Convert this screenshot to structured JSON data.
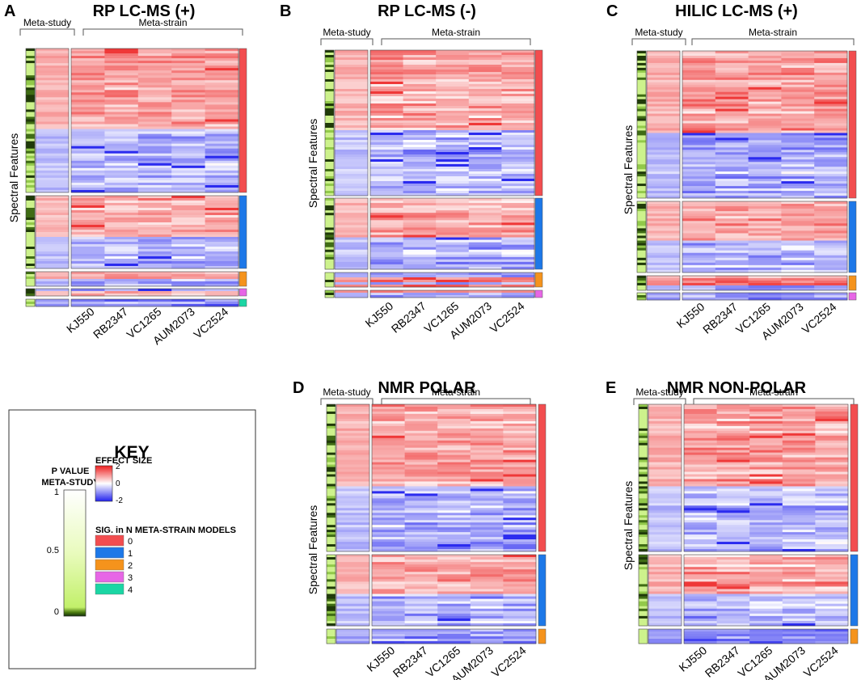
{
  "figure": {
    "panels": [
      {
        "letter": "A",
        "title": "RP LC-MS (+)",
        "group_meta_study": "Meta-study",
        "group_meta_strain": "Meta-strain",
        "ylabel": "Spectral Features",
        "blocks": [
          {
            "sig_count": 0,
            "pattern": "red-then-blue"
          },
          {
            "sig_count": 1,
            "pattern": "red-then-blue"
          },
          {
            "sig_count": 2,
            "pattern": "mixed-red"
          },
          {
            "sig_count": 3,
            "pattern": "mixed-red"
          },
          {
            "sig_count": 4,
            "pattern": "blue"
          }
        ]
      },
      {
        "letter": "B",
        "title": "RP LC-MS (-)",
        "group_meta_study": "Meta-study",
        "group_meta_strain": "Meta-strain",
        "ylabel": "Spectral Features",
        "blocks": [
          {
            "sig_count": 0,
            "pattern": "red-then-blue"
          },
          {
            "sig_count": 1,
            "pattern": "red-then-blue"
          },
          {
            "sig_count": 2,
            "pattern": "mixed-red"
          },
          {
            "sig_count": 3,
            "pattern": "mixed-red"
          }
        ]
      },
      {
        "letter": "C",
        "title": "HILIC LC-MS (+)",
        "group_meta_study": "Meta-study",
        "group_meta_strain": "Meta-strain",
        "ylabel": "Spectral Features",
        "blocks": [
          {
            "sig_count": 0,
            "pattern": "red-then-blue"
          },
          {
            "sig_count": 1,
            "pattern": "red-then-blue"
          },
          {
            "sig_count": 2,
            "pattern": "mixed-red"
          },
          {
            "sig_count": 3,
            "pattern": "blue"
          }
        ]
      },
      {
        "letter": "D",
        "title": "NMR POLAR",
        "group_meta_study": "Meta-study",
        "group_meta_strain": "Meta-strain",
        "ylabel": "Spectral Features",
        "blocks": [
          {
            "sig_count": 0,
            "pattern": "red-then-blue"
          },
          {
            "sig_count": 1,
            "pattern": "red-then-blue"
          },
          {
            "sig_count": 2,
            "pattern": "blue"
          }
        ]
      },
      {
        "letter": "E",
        "title": "NMR NON-POLAR",
        "group_meta_study": "Meta-study",
        "group_meta_strain": "Meta-strain",
        "ylabel": "Spectral Features",
        "blocks": [
          {
            "sig_count": 0,
            "pattern": "red-then-blue"
          },
          {
            "sig_count": 1,
            "pattern": "red-then-blue"
          },
          {
            "sig_count": 2,
            "pattern": "blue"
          }
        ]
      }
    ]
  },
  "chart_data": {
    "type": "heatmap",
    "columns": [
      "KJ550",
      "RB2347",
      "VC1265",
      "AUM2073",
      "VC2524"
    ],
    "meta_study_column": "Meta-study",
    "meta_strain_columns_group": "Meta-strain",
    "effect_size_range": [
      -2,
      2
    ],
    "p_value_range": [
      0,
      1
    ]
  },
  "key": {
    "title": "KEY",
    "pvalue_title_1": "P VALUE",
    "pvalue_title_2": "META-STUDY",
    "pvalue_ticks": [
      "1",
      "0.5",
      "0"
    ],
    "effect_title": "EFFECT SIZE",
    "effect_ticks": [
      "2",
      "0",
      "-2"
    ],
    "sig_title": "SIG. in N META-STRAIN MODELS",
    "sig_items": [
      {
        "label": "0",
        "color": "#f24d4f"
      },
      {
        "label": "1",
        "color": "#1d78e8"
      },
      {
        "label": "2",
        "color": "#f5931c"
      },
      {
        "label": "3",
        "color": "#e766e6"
      },
      {
        "label": "4",
        "color": "#1bd6a4"
      }
    ]
  },
  "colors": {
    "red": "#ee2c2c",
    "blue": "#2020ee",
    "pval_dark": "#1e3a06",
    "pval_light": "#e6fbb4"
  }
}
